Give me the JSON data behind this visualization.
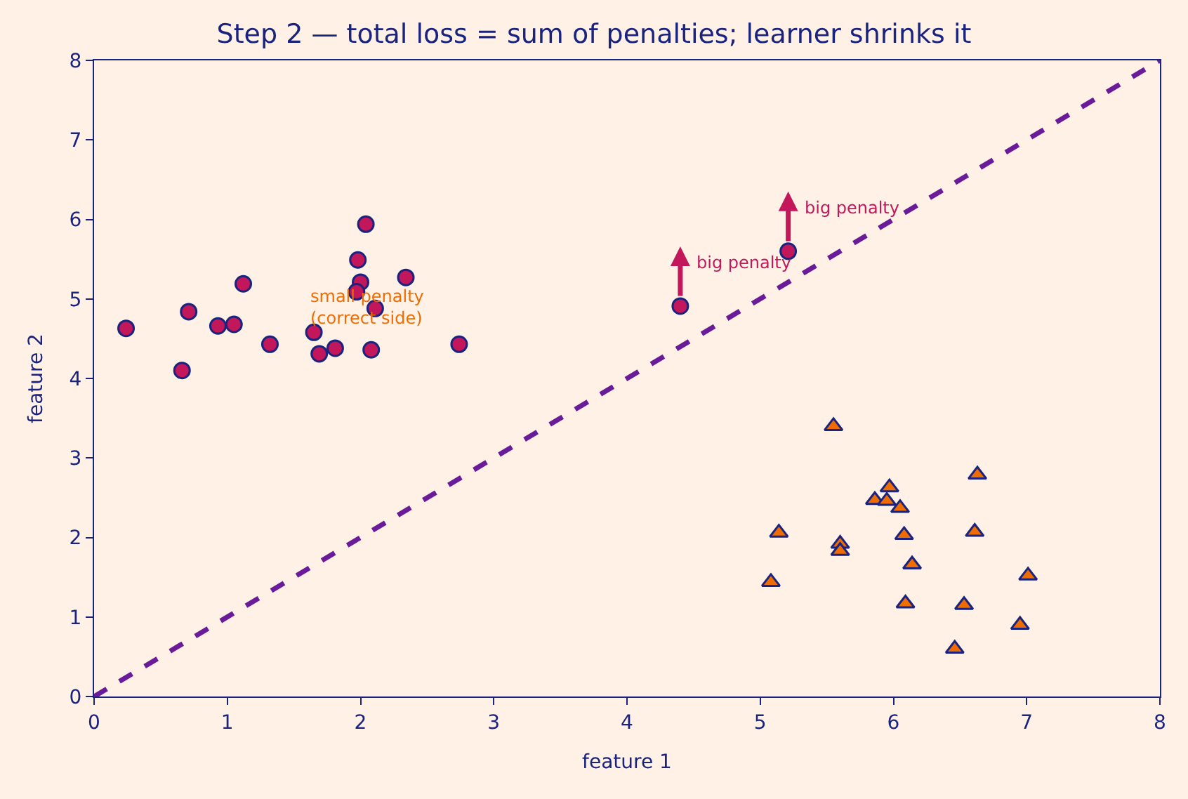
{
  "chart_data": {
    "type": "scatter",
    "title": "Step 2 — total loss = sum of penalties; learner shrinks it",
    "xlabel": "feature 1",
    "ylabel": "feature 2",
    "xlim": [
      0,
      8
    ],
    "ylim": [
      0,
      8
    ],
    "xticks": [
      0,
      1,
      2,
      3,
      4,
      5,
      6,
      7,
      8
    ],
    "yticks": [
      0,
      1,
      2,
      3,
      4,
      5,
      6,
      7,
      8
    ],
    "grid": false,
    "series": [
      {
        "marker": "circle",
        "color": "#c2185b",
        "x": [
          0.24,
          0.66,
          0.71,
          0.93,
          1.05,
          1.12,
          1.32,
          1.65,
          1.69,
          1.81,
          1.98,
          2.04,
          2.0,
          1.97,
          2.11,
          2.08,
          2.34,
          2.74,
          4.4,
          5.21
        ],
        "values": [
          4.63,
          4.1,
          4.84,
          4.66,
          4.68,
          5.19,
          4.43,
          4.58,
          4.31,
          4.38,
          5.49,
          5.94,
          5.21,
          5.09,
          4.88,
          4.36,
          5.27,
          4.43,
          4.91,
          5.6
        ]
      },
      {
        "marker": "triangle",
        "color": "#ef6c00",
        "x": [
          5.55,
          5.14,
          5.08,
          5.6,
          5.6,
          5.86,
          5.97,
          5.95,
          6.05,
          6.08,
          6.14,
          6.09,
          6.63,
          6.61,
          6.53,
          6.46,
          7.01,
          6.95
        ],
        "values": [
          3.4,
          2.06,
          1.44,
          1.92,
          1.83,
          2.47,
          2.63,
          2.46,
          2.37,
          2.03,
          1.66,
          1.17,
          2.79,
          2.07,
          1.15,
          0.6,
          1.52,
          0.9
        ]
      },
      {
        "type": "line",
        "line_style": "dashed",
        "marker": "none",
        "color": "#6a1b9a",
        "x": [
          0,
          8
        ],
        "values": [
          0,
          8
        ]
      }
    ],
    "annotations": [
      "small penalty\n(correct side)",
      {
        "text": "big penalty",
        "x": 4.4,
        "y": 4.91
      },
      {
        "text": "big penalty",
        "x": 5.21,
        "y": 5.6
      }
    ]
  }
}
